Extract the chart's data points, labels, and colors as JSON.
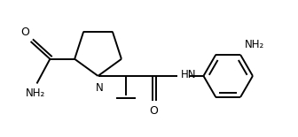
{
  "bg_color": "#ffffff",
  "line_color": "#000000",
  "figsize": [
    3.36,
    1.55
  ],
  "dpi": 100,
  "xlim": [
    0,
    3.36
  ],
  "ylim": [
    0,
    1.55
  ],
  "lw": 1.4
}
